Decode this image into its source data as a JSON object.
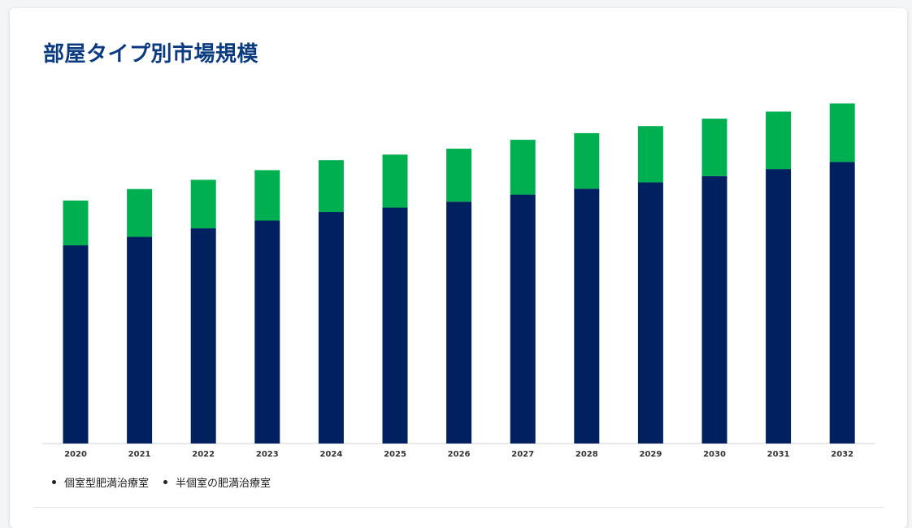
{
  "title": "部屋タイプ別市場規模",
  "chart_data": {
    "type": "bar",
    "stacked": true,
    "categories": [
      "2020",
      "2021",
      "2022",
      "2023",
      "2024",
      "2025",
      "2026",
      "2027",
      "2028",
      "2029",
      "2030",
      "2031",
      "2032"
    ],
    "series": [
      {
        "name": "個室型肥満治療室",
        "color": "#002060",
        "values": [
          53.5,
          55.8,
          58.1,
          60.2,
          62.5,
          63.7,
          65.3,
          67.2,
          68.8,
          70.5,
          72.2,
          74.1,
          76.0
        ]
      },
      {
        "name": "半個室の肥満治療室",
        "color": "#00b050",
        "values": [
          12.1,
          12.9,
          13.1,
          13.6,
          14.0,
          14.3,
          14.3,
          14.8,
          15.0,
          15.2,
          15.5,
          15.5,
          15.8
        ]
      }
    ],
    "ylim": [
      0,
      100
    ],
    "grid": false,
    "legend_position": "bottom-left"
  }
}
